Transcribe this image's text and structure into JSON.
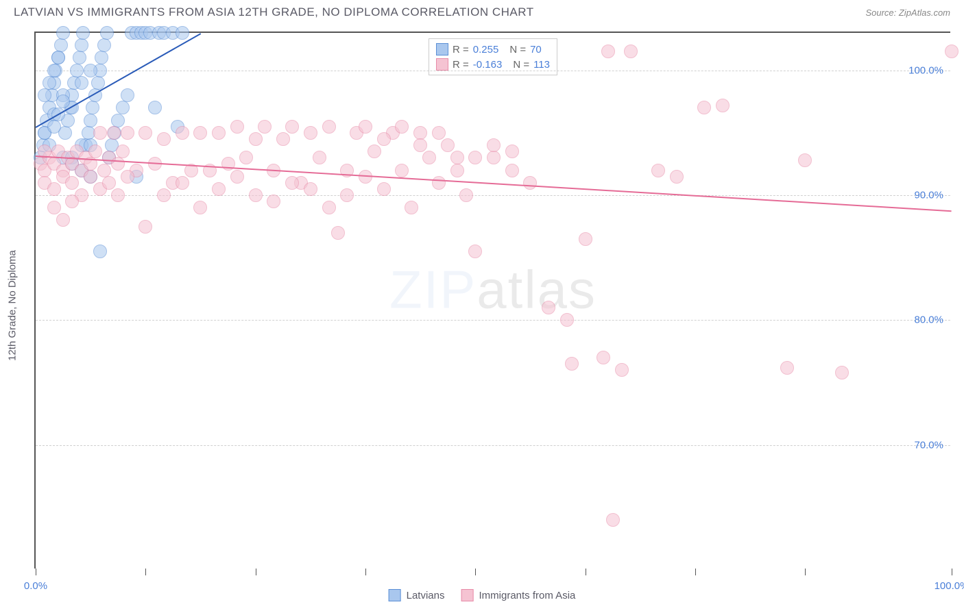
{
  "header": {
    "title": "LATVIAN VS IMMIGRANTS FROM ASIA 12TH GRADE, NO DIPLOMA CORRELATION CHART",
    "source": "Source: ZipAtlas.com"
  },
  "chart": {
    "type": "scatter",
    "ylabel": "12th Grade, No Diploma",
    "xlim": [
      0,
      100
    ],
    "ylim": [
      60,
      103
    ],
    "yticks": [
      70,
      80,
      90,
      100
    ],
    "ytick_labels": [
      "70.0%",
      "80.0%",
      "90.0%",
      "100.0%"
    ],
    "xticks": [
      0,
      12,
      24,
      36,
      48,
      60,
      72,
      84,
      100
    ],
    "xtick_labels": {
      "0": "0.0%",
      "100": "100.0%"
    },
    "background_color": "#ffffff",
    "grid_color": "#d0d0d0",
    "marker_radius": 10,
    "series": [
      {
        "name": "Latvians",
        "color_fill": "#a9c7ee",
        "color_stroke": "#5b8fd6",
        "r_value": "0.255",
        "n_value": "70",
        "trend": {
          "x1": 0,
          "y1": 95.5,
          "x2": 18,
          "y2": 103,
          "color": "#2a5bb8"
        },
        "points": [
          [
            0.5,
            93
          ],
          [
            0.8,
            94
          ],
          [
            1,
            95
          ],
          [
            1.2,
            96
          ],
          [
            1.5,
            97
          ],
          [
            1.8,
            98
          ],
          [
            2,
            99
          ],
          [
            2.2,
            100
          ],
          [
            2.5,
            101
          ],
          [
            2.8,
            102
          ],
          [
            3,
            103
          ],
          [
            3.2,
            95
          ],
          [
            3.5,
            96
          ],
          [
            3.8,
            97
          ],
          [
            4,
            98
          ],
          [
            4.2,
            99
          ],
          [
            4.5,
            100
          ],
          [
            4.8,
            101
          ],
          [
            5,
            102
          ],
          [
            5.2,
            103
          ],
          [
            5.5,
            94
          ],
          [
            5.8,
            95
          ],
          [
            6,
            96
          ],
          [
            6.2,
            97
          ],
          [
            6.5,
            98
          ],
          [
            6.8,
            99
          ],
          [
            7,
            100
          ],
          [
            7.2,
            101
          ],
          [
            7.5,
            102
          ],
          [
            7.8,
            103
          ],
          [
            8,
            93
          ],
          [
            8.3,
            94
          ],
          [
            8.6,
            95
          ],
          [
            9,
            96
          ],
          [
            9.5,
            97
          ],
          [
            10,
            98
          ],
          [
            10.5,
            103
          ],
          [
            11,
            103
          ],
          [
            11.5,
            103
          ],
          [
            12,
            103
          ],
          [
            12.5,
            103
          ],
          [
            13,
            97
          ],
          [
            13.5,
            103
          ],
          [
            14,
            103
          ],
          [
            15,
            103
          ],
          [
            16,
            103
          ],
          [
            3,
            93
          ],
          [
            4,
            93
          ],
          [
            5,
            94
          ],
          [
            6,
            94
          ],
          [
            2,
            96.5
          ],
          [
            3,
            98
          ],
          [
            4,
            97
          ],
          [
            5,
            99
          ],
          [
            6,
            100
          ],
          [
            1,
            95
          ],
          [
            1.5,
            94
          ],
          [
            2,
            95.5
          ],
          [
            2.5,
            96.5
          ],
          [
            3,
            97.5
          ],
          [
            1,
            98
          ],
          [
            1.5,
            99
          ],
          [
            2,
            100
          ],
          [
            2.5,
            101
          ],
          [
            7,
            85.5
          ],
          [
            11,
            91.5
          ],
          [
            15.5,
            95.5
          ],
          [
            4,
            92.5
          ],
          [
            5,
            92
          ],
          [
            6,
            91.5
          ]
        ]
      },
      {
        "name": "Immigrants from Asia",
        "color_fill": "#f5c3d2",
        "color_stroke": "#e88ba8",
        "r_value": "-0.163",
        "n_value": "113",
        "trend": {
          "x1": 0,
          "y1": 93.2,
          "x2": 100,
          "y2": 88.8,
          "color": "#e56b96"
        },
        "points": [
          [
            0.5,
            92.5
          ],
          [
            1,
            92
          ],
          [
            1.5,
            93
          ],
          [
            2,
            92.5
          ],
          [
            2.5,
            93.5
          ],
          [
            3,
            92
          ],
          [
            3.5,
            93
          ],
          [
            4,
            92.5
          ],
          [
            4.5,
            93.5
          ],
          [
            5,
            92
          ],
          [
            5.5,
            93
          ],
          [
            6,
            92.5
          ],
          [
            6.5,
            93.5
          ],
          [
            7,
            95
          ],
          [
            7.5,
            92
          ],
          [
            8,
            93
          ],
          [
            8.5,
            95
          ],
          [
            9,
            92.5
          ],
          [
            9.5,
            93.5
          ],
          [
            10,
            95
          ],
          [
            11,
            92
          ],
          [
            12,
            95
          ],
          [
            13,
            92.5
          ],
          [
            14,
            94.5
          ],
          [
            15,
            91
          ],
          [
            16,
            95
          ],
          [
            17,
            92
          ],
          [
            18,
            95
          ],
          [
            19,
            92
          ],
          [
            20,
            95
          ],
          [
            21,
            92.5
          ],
          [
            22,
            95.5
          ],
          [
            23,
            93
          ],
          [
            24,
            94.5
          ],
          [
            25,
            95.5
          ],
          [
            26,
            92
          ],
          [
            27,
            94.5
          ],
          [
            28,
            95.5
          ],
          [
            29,
            91
          ],
          [
            30,
            95
          ],
          [
            31,
            93
          ],
          [
            32,
            95.5
          ],
          [
            33,
            87
          ],
          [
            34,
            92
          ],
          [
            35,
            95
          ],
          [
            36,
            91.5
          ],
          [
            37,
            93.5
          ],
          [
            38,
            90.5
          ],
          [
            39,
            95
          ],
          [
            40,
            92
          ],
          [
            41,
            89
          ],
          [
            42,
            95
          ],
          [
            43,
            93
          ],
          [
            44,
            91
          ],
          [
            45,
            94
          ],
          [
            46,
            93
          ],
          [
            47,
            90
          ],
          [
            48,
            85.5
          ],
          [
            50,
            93
          ],
          [
            52,
            92
          ],
          [
            54,
            91
          ],
          [
            56,
            81
          ],
          [
            58,
            80
          ],
          [
            58.5,
            76.5
          ],
          [
            60,
            86.5
          ],
          [
            62,
            77
          ],
          [
            62.5,
            101.5
          ],
          [
            64,
            76
          ],
          [
            65,
            101.5
          ],
          [
            68,
            92
          ],
          [
            70,
            91.5
          ],
          [
            73,
            97
          ],
          [
            75,
            97.2
          ],
          [
            82,
            76.2
          ],
          [
            84,
            92.8
          ],
          [
            88,
            75.8
          ],
          [
            100,
            101.5
          ],
          [
            1,
            91
          ],
          [
            2,
            90.5
          ],
          [
            3,
            91.5
          ],
          [
            4,
            91
          ],
          [
            5,
            90
          ],
          [
            6,
            91.5
          ],
          [
            7,
            90.5
          ],
          [
            8,
            91
          ],
          [
            9,
            90
          ],
          [
            10,
            91.5
          ],
          [
            12,
            87.5
          ],
          [
            14,
            90
          ],
          [
            16,
            91
          ],
          [
            18,
            89
          ],
          [
            20,
            90.5
          ],
          [
            22,
            91.5
          ],
          [
            24,
            90
          ],
          [
            26,
            89.5
          ],
          [
            28,
            91
          ],
          [
            30,
            90.5
          ],
          [
            32,
            89
          ],
          [
            34,
            90
          ],
          [
            36,
            95.5
          ],
          [
            38,
            94.5
          ],
          [
            40,
            95.5
          ],
          [
            42,
            94
          ],
          [
            44,
            95
          ],
          [
            46,
            92
          ],
          [
            48,
            93
          ],
          [
            50,
            94
          ],
          [
            52,
            93.5
          ],
          [
            63,
            64
          ],
          [
            2,
            89
          ],
          [
            3,
            88
          ],
          [
            4,
            89.5
          ],
          [
            1,
            93.5
          ]
        ]
      }
    ],
    "legend": {
      "items": [
        {
          "label": "Latvians",
          "fill": "#a9c7ee",
          "stroke": "#5b8fd6"
        },
        {
          "label": "Immigrants from Asia",
          "fill": "#f5c3d2",
          "stroke": "#e88ba8"
        }
      ]
    },
    "watermark": "ZIPatlas"
  }
}
